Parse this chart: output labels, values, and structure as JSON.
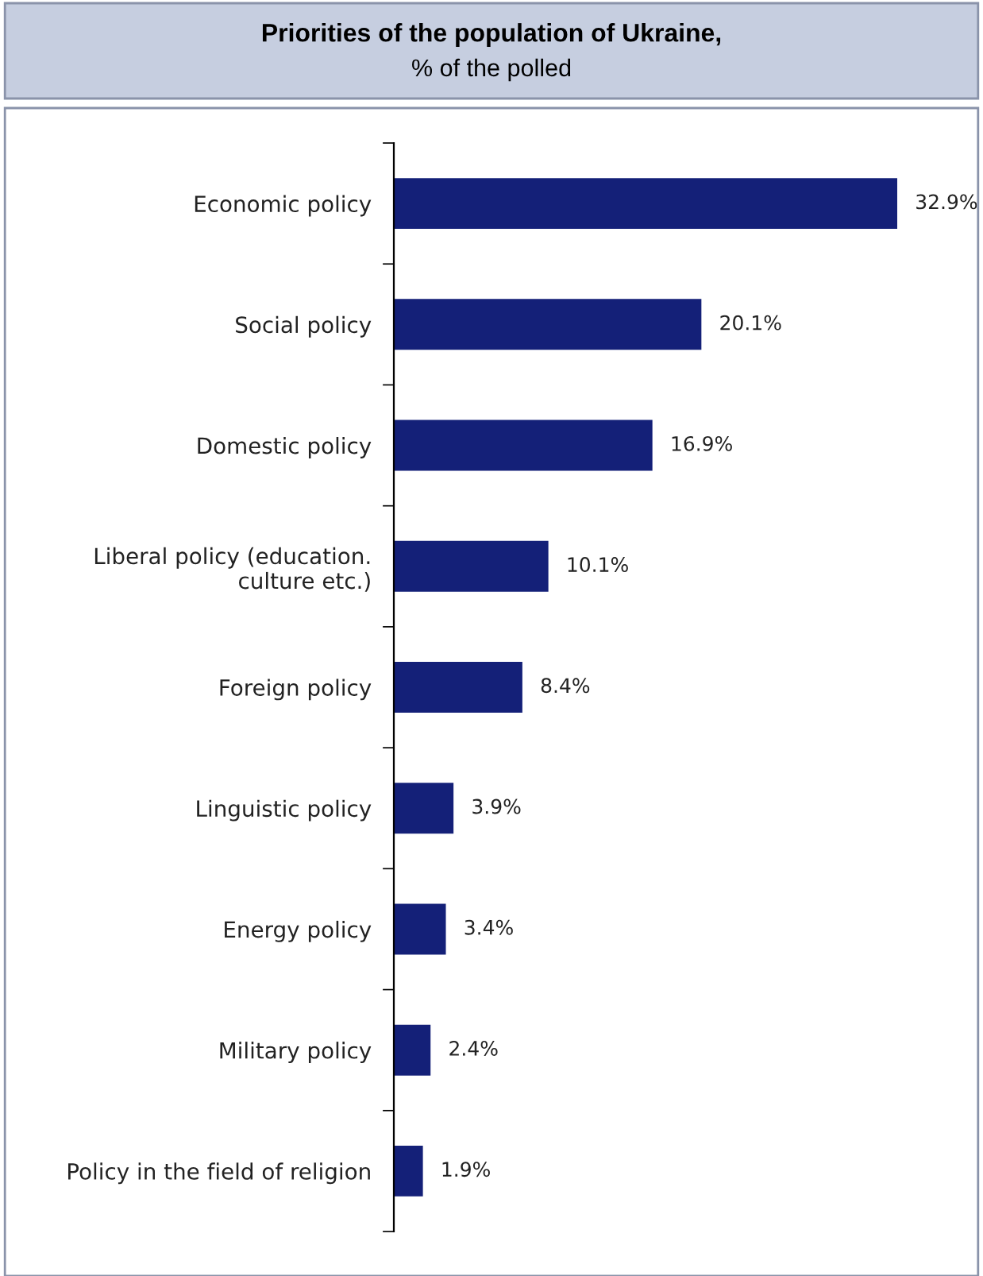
{
  "chart_data": {
    "type": "bar",
    "orientation": "horizontal",
    "title": "Priorities of the population of Ukraine,",
    "subtitle": "% of the polled",
    "categories": [
      "Economic policy",
      "Social policy",
      "Domestic policy",
      "Liberal policy (education.\nculture etc.)",
      "Foreign policy",
      "Linguistic policy",
      "Energy policy",
      "Military policy",
      "Policy in the field of religion"
    ],
    "values": [
      32.9,
      20.1,
      16.9,
      10.1,
      8.4,
      3.9,
      3.4,
      2.4,
      1.9
    ],
    "value_labels": [
      "32.9%",
      "20.1%",
      "16.9%",
      "10.1%",
      "8.4%",
      "3.9%",
      "3.4%",
      "2.4%",
      "1.9%"
    ],
    "color": "#142078",
    "tick_labels": "y",
    "grid": false,
    "legend": false
  }
}
